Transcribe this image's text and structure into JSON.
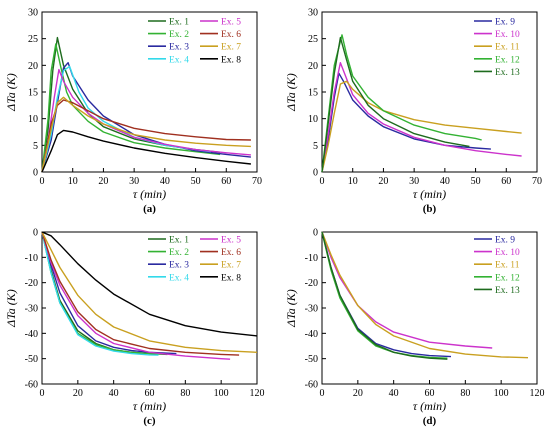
{
  "chart_data": [
    {
      "type": "line",
      "panel_label": "(a)",
      "xlabel": "τ (min)",
      "ylabel": "ΔTa (K)",
      "xlim": [
        0,
        70
      ],
      "ylim": [
        0,
        30
      ],
      "xticks": [
        0,
        10,
        20,
        30,
        40,
        50,
        60,
        70
      ],
      "yticks": [
        0,
        5,
        10,
        15,
        20,
        25,
        30
      ],
      "legend": "top-right, two columns",
      "series": [
        {
          "name": "Ex. 1",
          "color": "#1e6b1e",
          "x": [
            0,
            2,
            3.5,
            5,
            7,
            10,
            15,
            20,
            30,
            40,
            50,
            58
          ],
          "y": [
            0,
            8,
            19,
            25.2,
            20,
            15.5,
            11,
            8.5,
            6.2,
            5,
            4.2,
            3.7
          ]
        },
        {
          "name": "Ex. 2",
          "color": "#33b233",
          "x": [
            0,
            2,
            3,
            4.5,
            6,
            8,
            10,
            15,
            20,
            30,
            40,
            50,
            58
          ],
          "y": [
            0,
            10,
            19,
            24,
            20,
            15,
            12.5,
            9.5,
            7.5,
            5.5,
            4.5,
            3.8,
            3.3
          ]
        },
        {
          "name": "Ex. 3",
          "color": "#2a2aa0",
          "x": [
            0,
            3,
            5,
            7,
            8.5,
            10,
            15,
            20,
            30,
            40,
            50,
            60,
            68
          ],
          "y": [
            0,
            6,
            13,
            19.5,
            20.5,
            18,
            13.5,
            10.5,
            7,
            5.2,
            4,
            3.3,
            2.8
          ]
        },
        {
          "name": "Ex. 4",
          "color": "#33d9ea",
          "x": [
            0,
            3,
            5,
            7,
            9,
            12,
            15,
            20,
            30,
            40,
            50,
            55
          ],
          "y": [
            0,
            7,
            14,
            19,
            19.8,
            15,
            12,
            9.5,
            6.5,
            5,
            4.2,
            3.8
          ]
        },
        {
          "name": "Ex. 5",
          "color": "#cc33cc",
          "x": [
            0,
            2,
            4,
            5.5,
            7,
            10,
            15,
            20,
            30,
            40,
            50,
            60,
            68
          ],
          "y": [
            0,
            6,
            14,
            19.2,
            17,
            14,
            11,
            9,
            6.5,
            5.2,
            4.2,
            3.6,
            3.2
          ]
        },
        {
          "name": "Ex. 6",
          "color": "#a03020",
          "x": [
            0,
            3,
            5,
            7,
            10,
            15,
            20,
            30,
            40,
            50,
            60,
            68
          ],
          "y": [
            0,
            9,
            12.5,
            13.5,
            13,
            11.5,
            10,
            8.2,
            7.2,
            6.6,
            6.1,
            6
          ]
        },
        {
          "name": "Ex. 7",
          "color": "#c9a020",
          "x": [
            0,
            3,
            5,
            7,
            10,
            15,
            20,
            30,
            40,
            50,
            60,
            68
          ],
          "y": [
            0,
            8,
            13,
            14,
            12.5,
            10.5,
            9,
            7,
            6,
            5.4,
            5,
            4.8
          ]
        },
        {
          "name": "Ex. 8",
          "color": "#000000",
          "x": [
            0,
            3,
            5,
            7,
            10,
            15,
            20,
            30,
            40,
            50,
            60,
            68
          ],
          "y": [
            0,
            4,
            7,
            7.8,
            7.5,
            6.6,
            5.8,
            4.5,
            3.5,
            2.7,
            2,
            1.5
          ]
        }
      ]
    },
    {
      "type": "line",
      "panel_label": "(b)",
      "xlabel": "τ (min)",
      "ylabel": "ΔTa (K)",
      "xlim": [
        0,
        70
      ],
      "ylim": [
        0,
        30
      ],
      "xticks": [
        0,
        10,
        20,
        30,
        40,
        50,
        60,
        70
      ],
      "yticks": [
        0,
        5,
        10,
        15,
        20,
        25,
        30
      ],
      "legend": "top-right",
      "series": [
        {
          "name": "Ex. 9",
          "color": "#2a2aa0",
          "x": [
            0,
            2,
            4,
            5.5,
            7,
            10,
            15,
            20,
            30,
            40,
            50,
            55
          ],
          "y": [
            0,
            6,
            14,
            18.5,
            17,
            13.5,
            10.5,
            8.5,
            6.2,
            5,
            4.5,
            4.3
          ]
        },
        {
          "name": "Ex. 10",
          "color": "#cc33cc",
          "x": [
            0,
            2,
            4,
            6,
            8,
            10,
            15,
            20,
            30,
            40,
            50,
            60,
            65
          ],
          "y": [
            0,
            7,
            15,
            20.5,
            17.5,
            14.5,
            11,
            9,
            6.5,
            5,
            4,
            3.3,
            3
          ]
        },
        {
          "name": "Ex. 11",
          "color": "#c9a020",
          "x": [
            0,
            2,
            4,
            6,
            8,
            10,
            15,
            20,
            30,
            40,
            50,
            60,
            65
          ],
          "y": [
            0,
            5,
            11,
            16.5,
            17,
            15.5,
            13,
            11.5,
            9.8,
            8.8,
            8.2,
            7.6,
            7.3
          ]
        },
        {
          "name": "Ex. 12",
          "color": "#33b233",
          "x": [
            0,
            2,
            4,
            6.5,
            8,
            10,
            15,
            20,
            30,
            40,
            50,
            52
          ],
          "y": [
            0,
            10,
            20,
            25.7,
            22,
            18,
            14,
            11.5,
            8.8,
            7.2,
            6.3,
            6
          ]
        },
        {
          "name": "Ex. 13",
          "color": "#1e6b1e",
          "x": [
            0,
            2,
            4,
            6,
            8,
            10,
            15,
            20,
            30,
            40,
            48
          ],
          "y": [
            0,
            9,
            18.5,
            25.2,
            21,
            17,
            12.5,
            10,
            7.2,
            5.6,
            4.8
          ]
        }
      ]
    },
    {
      "type": "line",
      "panel_label": "(c)",
      "xlabel": "τ (min)",
      "ylabel": "ΔTa (K)",
      "xlim": [
        0,
        120
      ],
      "ylim": [
        -60,
        0
      ],
      "xticks": [
        0,
        20,
        40,
        60,
        80,
        100,
        120
      ],
      "yticks": [
        -60,
        -50,
        -40,
        -30,
        -20,
        -10,
        0
      ],
      "legend": "top-right, two columns",
      "series": [
        {
          "name": "Ex. 1",
          "color": "#1e6b1e",
          "x": [
            0,
            5,
            10,
            20,
            30,
            40,
            50,
            60,
            70
          ],
          "y": [
            0,
            -15,
            -27,
            -39,
            -44,
            -46.5,
            -47.5,
            -48,
            -48.3
          ]
        },
        {
          "name": "Ex. 2",
          "color": "#33b233",
          "x": [
            0,
            5,
            10,
            20,
            30,
            40,
            50,
            60,
            70
          ],
          "y": [
            0,
            -16,
            -28,
            -40,
            -44.5,
            -46.5,
            -47.5,
            -48,
            -48.2
          ]
        },
        {
          "name": "Ex. 3",
          "color": "#2a2aa0",
          "x": [
            0,
            5,
            10,
            20,
            30,
            40,
            50,
            60,
            75
          ],
          "y": [
            0,
            -13,
            -24,
            -37,
            -43,
            -45.5,
            -46.8,
            -47.5,
            -48
          ]
        },
        {
          "name": "Ex. 4",
          "color": "#33d9ea",
          "x": [
            0,
            5,
            10,
            20,
            30,
            40,
            50,
            60,
            65
          ],
          "y": [
            0,
            -16,
            -28,
            -40.5,
            -45,
            -47,
            -48,
            -48.5,
            -48.6
          ]
        },
        {
          "name": "Ex. 5",
          "color": "#cc33cc",
          "x": [
            0,
            5,
            10,
            20,
            30,
            40,
            60,
            80,
            100,
            105
          ],
          "y": [
            0,
            -12,
            -21,
            -33,
            -40,
            -44,
            -47.5,
            -49,
            -50,
            -50.2
          ]
        },
        {
          "name": "Ex. 6",
          "color": "#a03020",
          "x": [
            0,
            5,
            10,
            20,
            30,
            40,
            60,
            80,
            100,
            110
          ],
          "y": [
            0,
            -11,
            -19.5,
            -31.5,
            -38.5,
            -42.5,
            -46,
            -47.5,
            -48.3,
            -48.6
          ]
        },
        {
          "name": "Ex. 7",
          "color": "#c9a020",
          "x": [
            0,
            5,
            10,
            20,
            30,
            40,
            60,
            80,
            100,
            120
          ],
          "y": [
            0,
            -7,
            -14,
            -25,
            -32.5,
            -37.5,
            -43,
            -45.5,
            -46.8,
            -47.5
          ]
        },
        {
          "name": "Ex. 8",
          "color": "#000000",
          "x": [
            0,
            5,
            10,
            20,
            30,
            40,
            60,
            80,
            100,
            120
          ],
          "y": [
            0,
            -1.5,
            -5,
            -12.5,
            -19,
            -24.5,
            -32.5,
            -37,
            -39.5,
            -41
          ]
        }
      ]
    },
    {
      "type": "line",
      "panel_label": "(d)",
      "xlabel": "τ (min)",
      "ylabel": "ΔTa (K)",
      "xlim": [
        0,
        120
      ],
      "ylim": [
        -60,
        0
      ],
      "xticks": [
        0,
        20,
        40,
        60,
        80,
        100,
        120
      ],
      "yticks": [
        -60,
        -50,
        -40,
        -30,
        -20,
        -10,
        0
      ],
      "legend": "top-right",
      "series": [
        {
          "name": "Ex. 9",
          "color": "#2a2aa0",
          "x": [
            0,
            5,
            10,
            20,
            30,
            40,
            50,
            60,
            72
          ],
          "y": [
            0,
            -14,
            -25,
            -38,
            -44,
            -46.5,
            -48,
            -48.8,
            -49.2
          ]
        },
        {
          "name": "Ex. 10",
          "color": "#cc33cc",
          "x": [
            0,
            5,
            10,
            20,
            30,
            40,
            60,
            80,
            95
          ],
          "y": [
            0,
            -10,
            -18,
            -29,
            -35.5,
            -39.5,
            -43.5,
            -45,
            -45.8
          ]
        },
        {
          "name": "Ex. 11",
          "color": "#c9a020",
          "x": [
            0,
            5,
            10,
            20,
            30,
            40,
            60,
            80,
            100,
            115
          ],
          "y": [
            0,
            -9,
            -17,
            -29,
            -36.5,
            -41,
            -46,
            -48.2,
            -49.3,
            -49.6
          ]
        },
        {
          "name": "Ex. 12",
          "color": "#33b233",
          "x": [
            0,
            5,
            10,
            20,
            30,
            40,
            50,
            60,
            70
          ],
          "y": [
            0,
            -15,
            -26,
            -39,
            -45,
            -47.5,
            -48.8,
            -49.5,
            -49.8
          ]
        },
        {
          "name": "Ex. 13",
          "color": "#1e6b1e",
          "x": [
            0,
            5,
            10,
            20,
            30,
            40,
            50,
            60,
            70
          ],
          "y": [
            0,
            -14,
            -25,
            -38.5,
            -44.5,
            -47.5,
            -49,
            -49.8,
            -50.2
          ]
        }
      ]
    }
  ]
}
